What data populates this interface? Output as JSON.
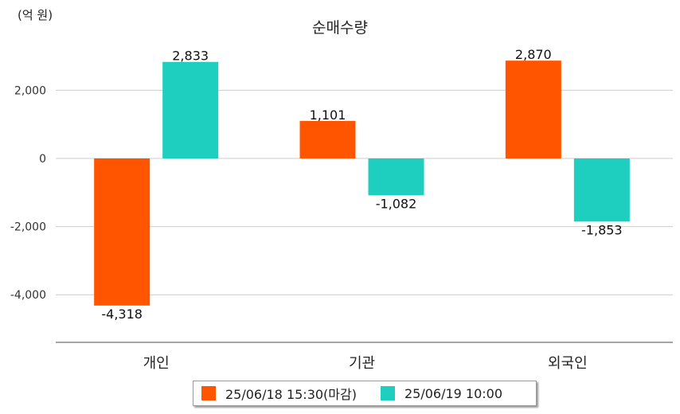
{
  "unit_label": "(억 원)",
  "chart_data": {
    "type": "bar",
    "title": "순매수량",
    "categories": [
      "개인",
      "기관",
      "외국인"
    ],
    "series": [
      {
        "name": "25/06/18 15:30(마감)",
        "color": "#ff5500",
        "values": [
          -4318,
          1101,
          2870
        ],
        "labels": [
          "-4,318",
          "1,101",
          "2,870"
        ]
      },
      {
        "name": "25/06/19 10:00",
        "color": "#1ecfbf",
        "values": [
          2833,
          -1082,
          -1853
        ],
        "labels": [
          "2,833",
          "-1,082",
          "-1,853"
        ]
      }
    ],
    "yticks": [
      2000,
      0,
      -2000,
      -4000
    ],
    "ytick_labels": [
      "2,000",
      "0",
      "-2,000",
      "-4,000"
    ],
    "ylim": [
      -5400,
      3300
    ],
    "grid": true,
    "legend": "bottom"
  }
}
